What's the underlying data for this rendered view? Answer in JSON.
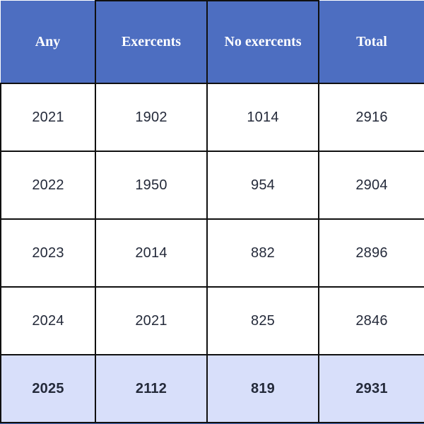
{
  "chart_data": {
    "type": "table",
    "title": "",
    "columns": [
      "Any",
      "Exercents",
      "No exercents",
      "Total"
    ],
    "rows": [
      [
        "2021",
        1902,
        1014,
        2916
      ],
      [
        "2022",
        1950,
        954,
        2904
      ],
      [
        "2023",
        2014,
        882,
        2896
      ],
      [
        "2024",
        2021,
        825,
        2846
      ],
      [
        "2025",
        2112,
        819,
        2931
      ]
    ],
    "highlighted_row_index": 4,
    "layout_hints": {
      "header_position": "top",
      "grid": true,
      "highlight_style": "bold text on light blue background"
    }
  },
  "colors": {
    "header_bg": "#4d6ec1",
    "header_text": "#ffffff",
    "border": "#101010",
    "cell_text": "#242a3a",
    "row_bg": "#ffffff",
    "highlight_bg": "#d8dffa"
  }
}
